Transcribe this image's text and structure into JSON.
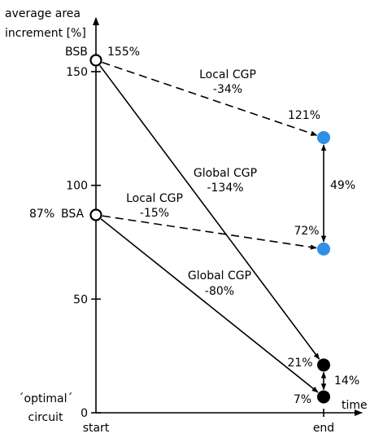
{
  "chart_data": {
    "type": "line",
    "title": "",
    "ylabel": "average area increment [%]",
    "xlabel": "time",
    "x_tick_labels": [
      "start",
      "end"
    ],
    "y_ticks": [
      "0",
      "50",
      "100",
      "150"
    ],
    "ylim": [
      0,
      160
    ],
    "grid": false,
    "start_points": [
      {
        "name": "BSB",
        "value": 155,
        "value_label": "155%"
      },
      {
        "name": "BSA",
        "value": 87,
        "value_label": "87%"
      }
    ],
    "end_points": [
      {
        "method": "Local CGP",
        "from": "BSB",
        "value": 121,
        "value_label": "121%",
        "color": "#2f8fe6"
      },
      {
        "method": "Local CGP",
        "from": "BSA",
        "value": 72,
        "value_label": "72%",
        "color": "#2f8fe6"
      },
      {
        "method": "Global CGP",
        "from": "BSB",
        "value": 21,
        "value_label": "21%",
        "color": "#000000"
      },
      {
        "method": "Global CGP",
        "from": "BSA",
        "value": 7,
        "value_label": "7%",
        "color": "#000000"
      }
    ],
    "transitions": [
      {
        "from": "BSB",
        "to_value": 121,
        "style": "dashed",
        "label": "Local CGP",
        "change": "-34%"
      },
      {
        "from": "BSA",
        "to_value": 72,
        "style": "dashed",
        "label": "Local CGP",
        "change": "-15%"
      },
      {
        "from": "BSB",
        "to_value": 21,
        "style": "solid",
        "label": "Global CGP",
        "change": "-134%"
      },
      {
        "from": "BSA",
        "to_value": 7,
        "style": "solid",
        "label": "Global CGP",
        "change": "-80%"
      }
    ],
    "gaps": [
      {
        "between": [
          121,
          72
        ],
        "label": "49%"
      },
      {
        "between": [
          21,
          7
        ],
        "label": "14%"
      }
    ],
    "optimal_label_line1": "´optimal´",
    "optimal_label_line2": "circuit"
  }
}
